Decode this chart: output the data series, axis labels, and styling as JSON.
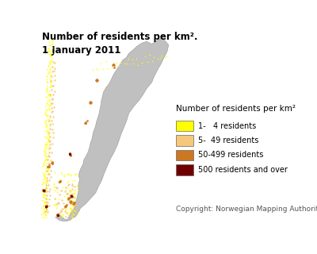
{
  "title_line1": "Number of residents per km².",
  "title_line2": "1 January 2011",
  "legend_title": "Number of residents per km²",
  "legend_items": [
    {
      "label": "1-   4 residents",
      "color": "#FFFF00"
    },
    {
      "label": "5-  49 residents",
      "color": "#F5C87A"
    },
    {
      "label": "50-499 residents",
      "color": "#CC7722"
    },
    {
      "label": "500 residents and over",
      "color": "#700000"
    }
  ],
  "copyright": "Copyright: Norwegian Mapping Authority",
  "map_land_color": "#C0C0C0",
  "map_border_color": "#999999",
  "background_color": "#FFFFFF",
  "title_fontsize": 8.5,
  "legend_title_fontsize": 7.5,
  "legend_fontsize": 7,
  "copyright_fontsize": 6.5
}
